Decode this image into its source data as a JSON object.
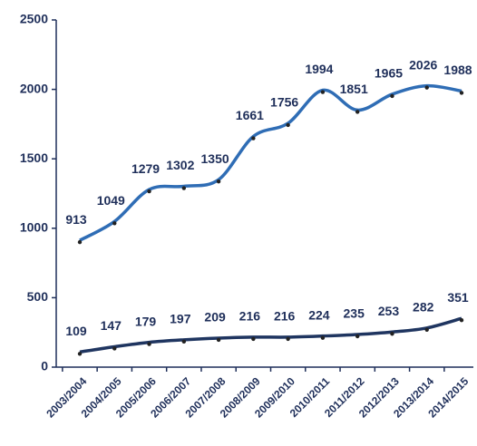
{
  "chart_data": {
    "type": "line",
    "categories": [
      "2003/2004",
      "2004/2005",
      "2005/2006",
      "2006/2007",
      "2007/2008",
      "2008/2009",
      "2009/2010",
      "2010/2011",
      "2011/2012",
      "2012/2013",
      "2013/2014",
      "2014/2015"
    ],
    "series": [
      {
        "color": "#2f6db5",
        "values": [
          913,
          1049,
          1279,
          1302,
          1350,
          1661,
          1756,
          1994,
          1851,
          1965,
          2026,
          1988
        ]
      },
      {
        "color": "#1f3560",
        "values": [
          109,
          147,
          179,
          197,
          209,
          216,
          216,
          224,
          235,
          253,
          282,
          351
        ]
      }
    ],
    "ylim": [
      0,
      2500
    ],
    "yticks": [
      0,
      500,
      1000,
      1500,
      2000,
      2500
    ]
  }
}
